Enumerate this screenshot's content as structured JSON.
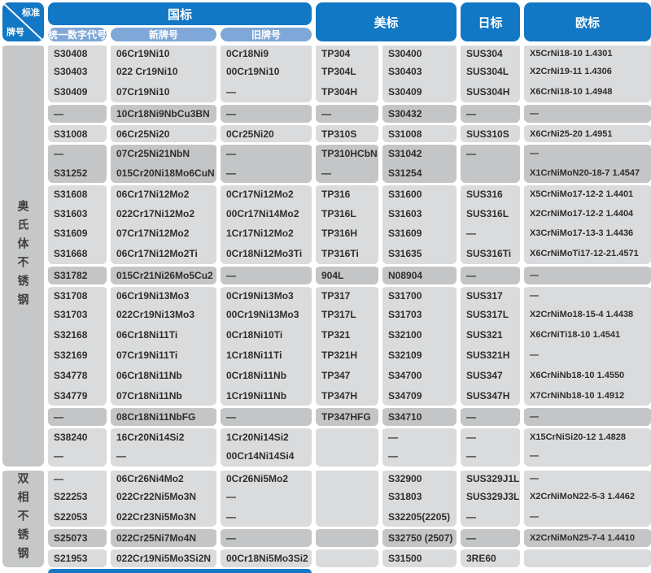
{
  "header": {
    "corner": {
      "top": "标准",
      "bottom": "牌号"
    },
    "groups": [
      {
        "key": "gb",
        "label": "国标",
        "subcols": [
          {
            "key": "unified-code",
            "label": "统一数字代号"
          },
          {
            "key": "new-grade",
            "label": "新牌号"
          },
          {
            "key": "old-grade",
            "label": "旧牌号"
          }
        ]
      },
      {
        "key": "us",
        "label": "美标"
      },
      {
        "key": "jp",
        "label": "日标"
      },
      {
        "key": "eu",
        "label": "欧标"
      }
    ]
  },
  "columns": [
    "unified-code",
    "new-grade",
    "old-grade",
    "astm-grade",
    "uns-grade",
    "jis-grade",
    "en-grade"
  ],
  "sections": [
    {
      "key": "austenitic",
      "label": "奥氏体不锈钢",
      "rows": [
        {
          "c": [
            "S30408",
            "06Cr19Ni10",
            "0Cr18Ni9",
            "TP304",
            "S30400",
            "SUS304",
            "X5CrNi18-10 1.4301"
          ],
          "hl": 0,
          "s": 1,
          "e": 0
        },
        {
          "c": [
            "S30403",
            "022 Cr19Ni10",
            "00Cr19Ni10",
            "TP304L",
            "S30403",
            "SUS304L",
            "X2CrNi19-11 1.4306"
          ],
          "hl": 0,
          "s": 0,
          "e": 0
        },
        {
          "c": [
            "S30409",
            "07Cr19Ni10",
            "—",
            "TP304H",
            "S30409",
            "SUS304H",
            "X6CrNi18-10 1.4948"
          ],
          "hl": 0,
          "s": 0,
          "e": 1
        },
        {
          "c": [
            "—",
            "10Cr18Ni9NbCu3BN",
            "—",
            "—",
            "S30432",
            "—",
            "—"
          ],
          "hl": 1,
          "s": 1,
          "e": 1
        },
        {
          "c": [
            "S31008",
            "06Cr25Ni20",
            "0Cr25Ni20",
            "TP310S",
            "S31008",
            "SUS310S",
            "X6CrNi25-20 1.4951"
          ],
          "hl": 0,
          "s": 1,
          "e": 1
        },
        {
          "c": [
            "—",
            "07Cr25Ni21NbN",
            "—",
            "TP310HCbN",
            "S31042",
            "—",
            "—"
          ],
          "hl": 1,
          "s": 1,
          "e": 0
        },
        {
          "c": [
            "S31252",
            "015Cr20Ni18Mo6CuN",
            "—",
            "—",
            "S31254",
            "",
            "X1CrNiMoN20-18-7 1.4547"
          ],
          "hl": 1,
          "s": 0,
          "e": 1
        },
        {
          "c": [
            "S31608",
            "06Cr17Ni12Mo2",
            "0Cr17Ni12Mo2",
            "TP316",
            "S31600",
            "SUS316",
            "X5CrNiMo17-12-2 1.4401"
          ],
          "hl": 0,
          "s": 1,
          "e": 0
        },
        {
          "c": [
            "S31603",
            "022Cr17Ni12Mo2",
            "00Cr17Ni14Mo2",
            "TP316L",
            "S31603",
            "SUS316L",
            "X2CrNiMo17-12-2 1.4404"
          ],
          "hl": 0,
          "s": 0,
          "e": 0
        },
        {
          "c": [
            "S31609",
            "07Cr17Ni12Mo2",
            "1Cr17Ni12Mo2",
            "TP316H",
            "S31609",
            "—",
            "X3CrNiMo17-13-3 1.4436"
          ],
          "hl": 0,
          "s": 0,
          "e": 0
        },
        {
          "c": [
            "S31668",
            "06Cr17Ni12Mo2Ti",
            "0Cr18Ni12Mo3Ti",
            "TP316Ti",
            "S31635",
            "SUS316Ti",
            "X6CrNiMoTi17-12-21.4571"
          ],
          "hl": 0,
          "s": 0,
          "e": 1
        },
        {
          "c": [
            "S31782",
            "015Cr21Ni26Mo5Cu2",
            "—",
            "904L",
            "N08904",
            "—",
            "—"
          ],
          "hl": 1,
          "s": 1,
          "e": 1
        },
        {
          "c": [
            "S31708",
            "06Cr19Ni13Mo3",
            "0Cr19Ni13Mo3",
            "TP317",
            "S31700",
            "SUS317",
            "—"
          ],
          "hl": 0,
          "s": 1,
          "e": 0
        },
        {
          "c": [
            "S31703",
            "022Cr19Ni13Mo3",
            "00Cr19Ni13Mo3",
            "TP317L",
            "S31703",
            "SUS317L",
            "X2CrNiMo18-15-4 1.4438"
          ],
          "hl": 0,
          "s": 0,
          "e": 0
        },
        {
          "c": [
            "S32168",
            "06Cr18Ni11Ti",
            "0Cr18Ni10Ti",
            "TP321",
            "S32100",
            "SUS321",
            "X6CrNiTi18-10 1.4541"
          ],
          "hl": 0,
          "s": 0,
          "e": 0
        },
        {
          "c": [
            "S32169",
            "07Cr19Ni11Ti",
            "1Cr18Ni11Ti",
            "TP321H",
            "S32109",
            "SUS321H",
            "—"
          ],
          "hl": 0,
          "s": 0,
          "e": 0
        },
        {
          "c": [
            "S34778",
            "06Cr18Ni11Nb",
            "0Cr18Ni11Nb",
            "TP347",
            "S34700",
            "SUS347",
            "X6CrNiNb18-10 1.4550"
          ],
          "hl": 0,
          "s": 0,
          "e": 0
        },
        {
          "c": [
            "S34779",
            "07Cr18Ni11Nb",
            "1Cr19Ni11Nb",
            "TP347H",
            "S34709",
            "SUS347H",
            "X7CrNiNb18-10 1.4912"
          ],
          "hl": 0,
          "s": 0,
          "e": 1
        },
        {
          "c": [
            "—",
            "08Cr18Ni11NbFG",
            "—",
            "TP347HFG",
            "S34710",
            "—",
            "—"
          ],
          "hl": 1,
          "s": 1,
          "e": 1
        },
        {
          "c": [
            "S38240",
            "16Cr20Ni14Si2",
            "1Cr20Ni14Si2",
            "",
            "—",
            "—",
            "X15CrNiSi20-12 1.4828"
          ],
          "hl": 0,
          "s": 1,
          "e": 0
        },
        {
          "c": [
            "—",
            "—",
            "00Cr14Ni14Si4",
            "",
            "—",
            "—",
            "—"
          ],
          "hl": 0,
          "s": 0,
          "e": 1
        }
      ]
    },
    {
      "key": "duplex",
      "label": "双相不锈钢",
      "rows": [
        {
          "c": [
            "—",
            "06Cr26Ni4Mo2",
            "0Cr26Ni5Mo2",
            "",
            "S32900",
            "SUS329J1L",
            "—"
          ],
          "hl": 0,
          "s": 1,
          "e": 0
        },
        {
          "c": [
            "S22253",
            "022Cr22Ni5Mo3N",
            "—",
            "",
            "S31803",
            "SUS329J3L",
            "X2CrNiMoN22-5-3 1.4462"
          ],
          "hl": 0,
          "s": 0,
          "e": 0
        },
        {
          "c": [
            "S22053",
            "022Cr23Ni5Mo3N",
            "—",
            "",
            "S32205(2205)",
            "—",
            "—"
          ],
          "hl": 0,
          "s": 0,
          "e": 1
        },
        {
          "c": [
            "S25073",
            "022Cr25Ni7Mo4N",
            "—",
            "",
            "S32750 (2507)",
            "—",
            "X2CrNiMoN25-7-4 1.4410"
          ],
          "hl": 1,
          "s": 1,
          "e": 1
        },
        {
          "c": [
            "S21953",
            "022Cr19Ni5Mo3Si2N",
            "00Cr18Ni5Mo3Si2",
            "",
            "S31500",
            "3RE60",
            ""
          ],
          "hl": 0,
          "s": 1,
          "e": 1
        }
      ]
    }
  ],
  "colors": {
    "header_blue": "#1277c4",
    "subheader_blue": "#7fa7d8",
    "row_bg": "#dadbdc",
    "row_highlight_bg": "#c4c5c6",
    "section_bg": "#c6c7c8",
    "text": "#2e2e2e",
    "header_text": "#ffffff"
  }
}
